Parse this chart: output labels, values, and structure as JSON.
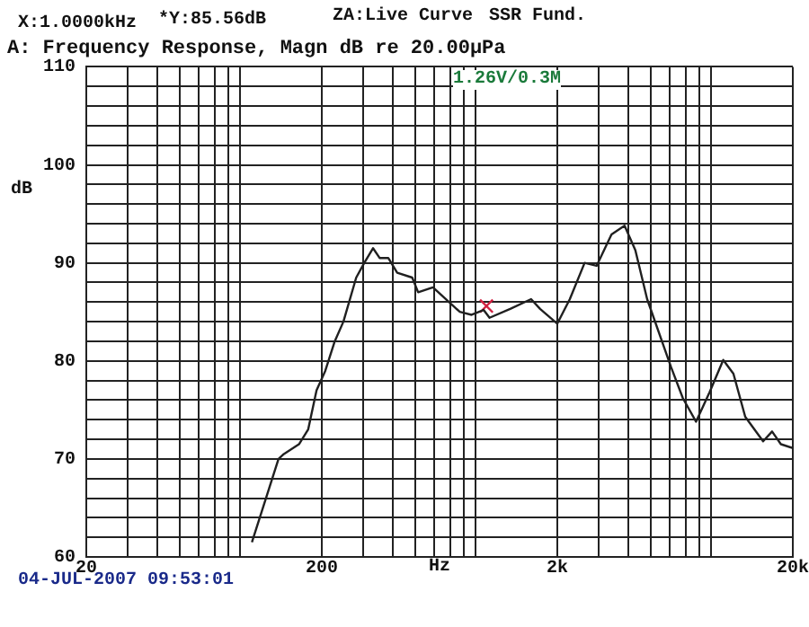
{
  "chart_data": {
    "type": "line",
    "title": "A: Frequency Response, Magn dB re 20.00μPa",
    "xlabel": "Hz",
    "ylabel": "dB",
    "annotations": [
      "X:1.0000kHz",
      "*Y:85.56dB",
      "ZA:Live Curve",
      "SSR Fund.",
      "1.26V/0.3M",
      "04-JUL-2007 09:53:01"
    ],
    "log": "x",
    "grid": true,
    "legend": false,
    "line_style": "solid",
    "xlim": [
      20,
      20000
    ],
    "ylim": [
      60,
      110
    ],
    "xticks": [
      20,
      {
        "value": 30,
        "label": null
      },
      {
        "value": 40,
        "label": null
      },
      {
        "value": 50,
        "label": null
      },
      {
        "value": 60,
        "label": null
      },
      {
        "value": 70,
        "label": null
      },
      {
        "value": 80,
        "label": null
      },
      {
        "value": 90,
        "label": null
      },
      200,
      {
        "value": 300,
        "label": null
      },
      {
        "value": 400,
        "label": null
      },
      {
        "value": 500,
        "label": null
      },
      {
        "value": 600,
        "label": null
      },
      {
        "value": 700,
        "label": null
      },
      {
        "value": 800,
        "label": null
      },
      {
        "value": 900,
        "label": null
      },
      {
        "value": 2000,
        "label": "2k"
      },
      {
        "value": 3000,
        "label": null
      },
      {
        "value": 4000,
        "label": null
      },
      {
        "value": 5000,
        "label": null
      },
      {
        "value": 6000,
        "label": null
      },
      {
        "value": 7000,
        "label": null
      },
      {
        "value": 8000,
        "label": null
      },
      {
        "value": 9000,
        "label": null
      },
      {
        "value": 20000,
        "label": "20k"
      }
    ],
    "yticks": [
      60,
      {
        "value": 62,
        "label": null
      },
      {
        "value": 64,
        "label": null
      },
      {
        "value": 66,
        "label": null
      },
      {
        "value": 68,
        "label": null
      },
      70,
      {
        "value": 72,
        "label": null
      },
      {
        "value": 74,
        "label": null
      },
      {
        "value": 76,
        "label": null
      },
      {
        "value": 78,
        "label": null
      },
      80,
      {
        "value": 82,
        "label": null
      },
      {
        "value": 84,
        "label": null
      },
      {
        "value": 86,
        "label": null
      },
      {
        "value": 88,
        "label": null
      },
      90,
      {
        "value": 92,
        "label": null
      },
      {
        "value": 94,
        "label": null
      },
      {
        "value": 96,
        "label": null
      },
      {
        "value": 98,
        "label": null
      },
      100,
      {
        "value": 102,
        "label": null
      },
      {
        "value": 104,
        "label": null
      },
      {
        "value": 106,
        "label": null
      },
      {
        "value": 108,
        "label": null
      },
      110
    ],
    "series": [
      {
        "color": "#202020",
        "marker": "none",
        "x": [
          101,
          131,
          138,
          160,
          175,
          190,
          207,
          227,
          247,
          280,
          303,
          330,
          352,
          383,
          418,
          484,
          513,
          593,
          771,
          865,
          973,
          1031,
          1262,
          1548,
          1690,
          2000,
          2260,
          2612,
          2937,
          3397,
          3860,
          4289,
          4814,
          6076,
          6826,
          7762,
          8860,
          10130,
          11190,
          12560,
          14960,
          16330,
          17800,
          20000
        ],
        "values": [
          61.5,
          70,
          70.5,
          71.5,
          73,
          77,
          79,
          82,
          84,
          88.5,
          90,
          91.5,
          90.5,
          90.5,
          89,
          88.5,
          87,
          87.5,
          85,
          84.7,
          85.2,
          84.4,
          85.3,
          86.3,
          85.3,
          83.8,
          86.3,
          90,
          89.7,
          92.9,
          93.8,
          91.3,
          86.3,
          79.4,
          76.2,
          73.8,
          76.8,
          80.1,
          78.7,
          74.3,
          71.8,
          72.8,
          71.5,
          71.1
        ]
      },
      {
        "type": "scatter",
        "color": "#d02040",
        "marker": "cross",
        "x": [
          1000
        ],
        "values": [
          85.6
        ]
      }
    ]
  }
}
